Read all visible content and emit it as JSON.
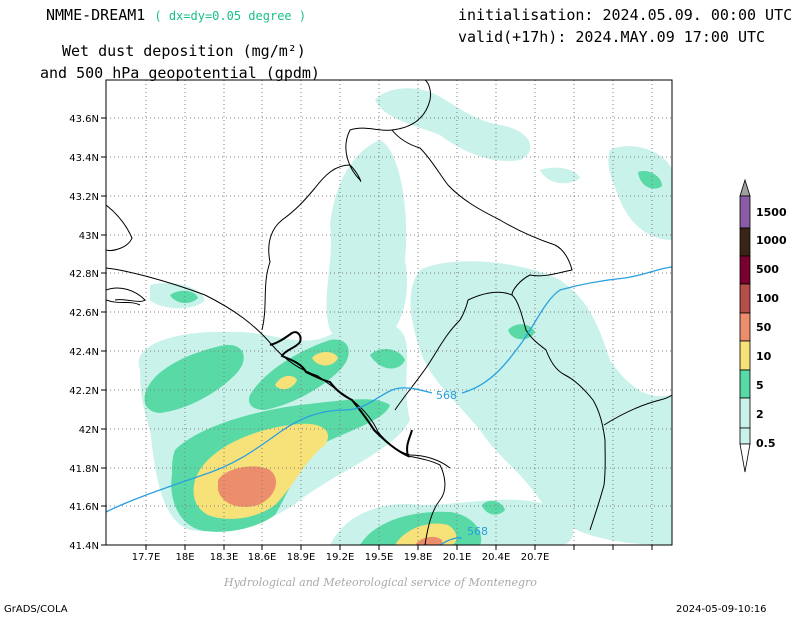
{
  "header": {
    "model": "NMME-DREAM1",
    "resolution": "( dx=dy=0.05 degree )",
    "title_line1": "Wet dust deposition (mg/m²)",
    "title_line2": "and 500 hPa geopotential (gpdm)",
    "initialisation": "initialisation: 2024.05.09. 00:00 UTC",
    "valid": "valid(+17h): 2024.MAY.09 17:00 UTC"
  },
  "footer": {
    "credit": "Hydrological and Meteorological service of Montenegro",
    "software": "GrADS/COLA",
    "timestamp": "2024-05-09-10:16"
  },
  "map": {
    "lon_ticks": [
      "17.7E",
      "18E",
      "18.3E",
      "18.6E",
      "18.9E",
      "19.2E",
      "19.5E",
      "19.8E",
      "20.1E",
      "20.4E",
      "20.7E"
    ],
    "lat_ticks": [
      "43.6N",
      "43.4N",
      "43.2N",
      "43N",
      "42.8N",
      "42.6N",
      "42.4N",
      "42.2N",
      "42N",
      "41.8N",
      "41.6N",
      "41.4N"
    ],
    "contour_labels": [
      "568",
      "568"
    ]
  },
  "legend": {
    "levels": [
      "0.5",
      "2",
      "5",
      "10",
      "50",
      "100",
      "500",
      "1000",
      "1500"
    ],
    "colors": {
      "lt0.5": "#ffffff",
      "0.5-2": "#c8f2ea",
      "2-5": "#58d9a6",
      "5-10": "#f7e27a",
      "10-50": "#ec8e6c",
      "50-100": "#b44e48",
      "100-500": "#7a0030",
      "500-1000": "#3a2416",
      "1000-1500": "#8a5ca6",
      "gt1500": "#a0a0a0"
    }
  }
}
